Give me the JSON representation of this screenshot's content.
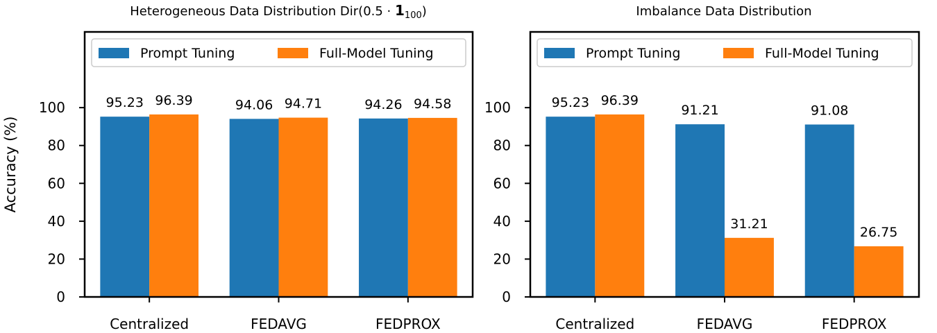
{
  "figure": {
    "ylabel": "Accuracy (%)"
  },
  "colors": {
    "prompt": "#1f77b4",
    "full": "#ff7f0e"
  },
  "chart_data": [
    {
      "type": "bar",
      "title_main": "Heterogeneous Data Distribution Dir(0.5 · ",
      "title_bold": "1",
      "title_sub": "100",
      "title_close": ")",
      "categories": [
        "Centralized",
        "FEDAVG",
        "FEDPROX"
      ],
      "series": [
        {
          "name": "Prompt Tuning",
          "values": [
            95.23,
            94.06,
            94.26
          ],
          "labels": [
            "95.23",
            "94.06",
            "94.26"
          ]
        },
        {
          "name": "Full-Model Tuning",
          "values": [
            96.39,
            94.71,
            94.58
          ],
          "labels": [
            "96.39",
            "94.71",
            "94.58"
          ]
        }
      ],
      "yticks": [
        "0",
        "20",
        "40",
        "60",
        "80",
        "100"
      ],
      "ylim": [
        0,
        140
      ],
      "legend": "top"
    },
    {
      "type": "bar",
      "title": "Imbalance Data Distribution",
      "categories": [
        "Centralized",
        "FEDAVG",
        "FEDPROX"
      ],
      "series": [
        {
          "name": "Prompt Tuning",
          "values": [
            95.23,
            91.21,
            91.08
          ],
          "labels": [
            "95.23",
            "91.21",
            "91.08"
          ]
        },
        {
          "name": "Full-Model Tuning",
          "values": [
            96.39,
            31.21,
            26.75
          ],
          "labels": [
            "96.39",
            "31.21",
            "26.75"
          ]
        }
      ],
      "yticks": [
        "0",
        "20",
        "40",
        "60",
        "80",
        "100"
      ],
      "ylim": [
        0,
        140
      ],
      "legend": "top"
    }
  ]
}
